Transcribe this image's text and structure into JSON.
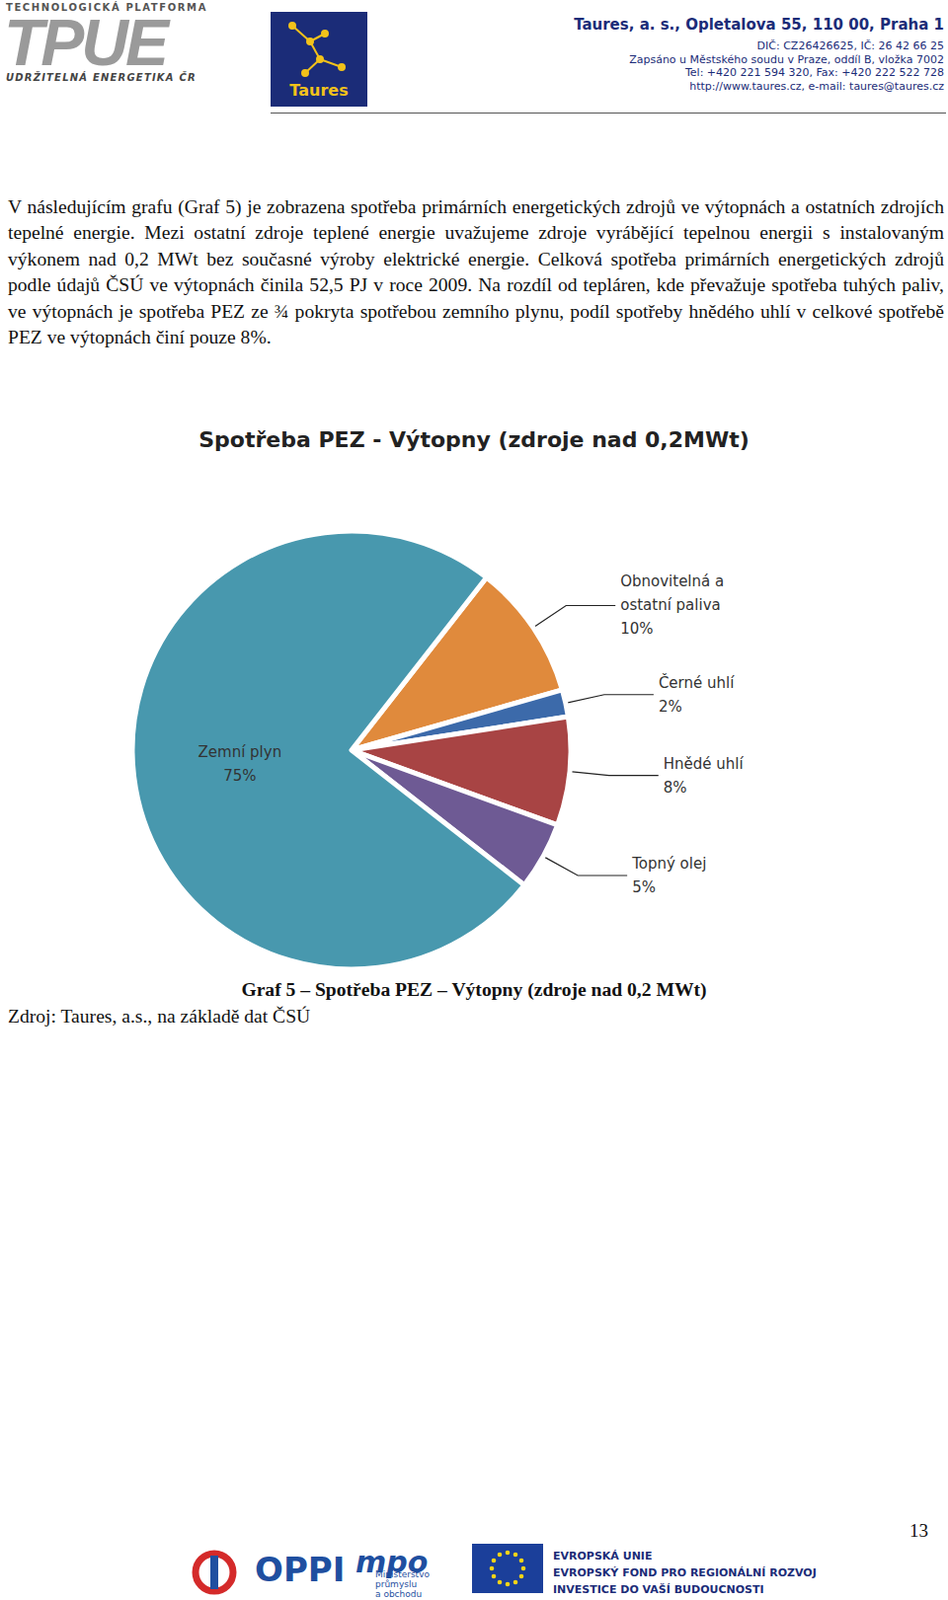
{
  "header": {
    "logo_left": {
      "top": "TECHNOLOGICKÁ PLATFORMA",
      "main": "TPUE",
      "bottom": "UDRŽITELNÁ ENERGETIKA ČR"
    },
    "logo_right": "Taures",
    "company": [
      "Taures, a. s., Opletalova 55, 110 00, Praha 1",
      "DIČ: CZ26426625, IČ: 26 42 66 25",
      "Zapsáno u Městského soudu v Praze, oddíl B, vložka 7002",
      "Tel: +420 221 594 320, Fax: +420 222 522 728",
      "http://www.taures.cz, e-mail: taures@taures.cz"
    ]
  },
  "paragraph": "V následujícím grafu (Graf 5) je zobrazena spotřeba primárních energetických zdrojů ve výtopnách a ostatních zdrojích tepelné energie. Mezi ostatní zdroje teplené energie uvažujeme zdroje vyrábějící tepelnou energii s instalovaným výkonem nad 0,2 MWt bez současné výroby elektrické energie. Celková spotřeba primárních energetických zdrojů podle údajů ČSÚ ve výtopnách činila 52,5 PJ v roce 2009. Na rozdíl od tepláren, kde převažuje spotřeba tuhých paliv, ve výtopnách je spotřeba PEZ ze ¾ pokryta spotřebou zemního plynu, podíl spotřeby hnědého uhlí v celkové spotřebě PEZ ve výtopnách činí pouze 8%.",
  "chart_data": {
    "type": "pie",
    "title": "Spotřeba PEZ - Výtopny (zdroje nad 0,2MWt)",
    "categories": [
      "Obnovitelná a ostatní paliva",
      "Černé uhlí",
      "Hnědé uhlí",
      "Topný olej",
      "Zemní plyn"
    ],
    "values": [
      10,
      2,
      8,
      5,
      75
    ],
    "value_labels": [
      "10%",
      "2%",
      "8%",
      "5%",
      "75%"
    ],
    "colors": [
      "#e08a3c",
      "#3c6aaa",
      "#a84444",
      "#6e5a94",
      "#4898ae"
    ],
    "data_labels": true
  },
  "caption": "Graf 5 – Spotřeba PEZ – Výtopny (zdroje nad 0,2 MWt)",
  "source": "Zdroj: Taures, a.s., na základě dat ČSÚ",
  "page_number": "13",
  "footer": {
    "oppi": "OPPI",
    "mpo": "mpo",
    "mpo_sub": [
      "Ministerstvo",
      "průmyslu",
      "a obchodu"
    ],
    "eu": [
      "EVROPSKÁ UNIE",
      "EVROPSKÝ FOND PRO REGIONÁLNÍ ROZVOJ",
      "INVESTICE DO VAŠÍ BUDOUCNOSTI"
    ]
  }
}
